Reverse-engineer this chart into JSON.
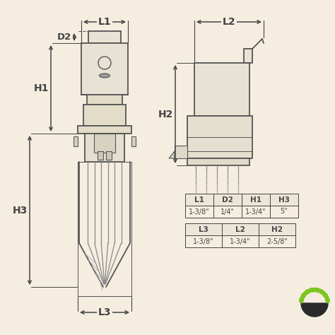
{
  "bg_color": "#f5ede0",
  "line_color": "#555555",
  "dark_color": "#444444",
  "table1_headers": [
    "L1",
    "D2",
    "H1",
    "H3"
  ],
  "table1_values": [
    "1-3/8\"",
    "1/4\"",
    "1-3/4\"",
    "5\""
  ],
  "table2_headers": [
    "L3",
    "L2",
    "H2"
  ],
  "table2_values": [
    "1-3/8\"",
    "1-3/4\"",
    "2-5/8\""
  ]
}
